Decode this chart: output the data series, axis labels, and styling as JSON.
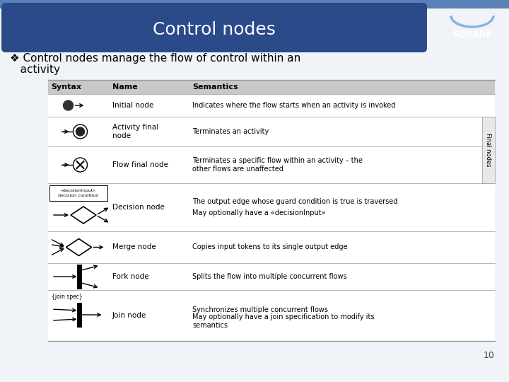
{
  "title": "Control nodes",
  "square_text": "SQUARE",
  "bullet_line1": "❖ Control nodes manage the flow of control within an",
  "bullet_line2": "   activity",
  "header_bg": "#2a4a8a",
  "slide_bg": "#dce6f1",
  "top_band_color": "#5b80b8",
  "table_header_labels": [
    "Syntax",
    "Name",
    "Semantics"
  ],
  "rows": [
    {
      "name": "Initial node",
      "semantics": "Indicates where the flow starts when an activity is invoked",
      "semantics2": ""
    },
    {
      "name": "Activity final\nnode",
      "semantics": "Terminates an activity",
      "semantics2": ""
    },
    {
      "name": "Flow final node",
      "semantics": "Terminates a specific flow within an activity – the\nother flows are unaffected",
      "semantics2": ""
    },
    {
      "name": "Decision node",
      "semantics": "The output edge whose guard condition is true is traversed",
      "semantics2": "May optionally have a «decisionInput»"
    },
    {
      "name": "Merge node",
      "semantics": "Copies input tokens to its single output edge",
      "semantics2": ""
    },
    {
      "name": "Fork node",
      "semantics": "Splits the flow into multiple concurrent flows",
      "semantics2": ""
    },
    {
      "name": "Join node",
      "semantics": "Synchronizes multiple concurrent flows",
      "semantics2": "May optionally have a join specification to modify its\nsemantics"
    }
  ],
  "final_nodes_label": "Final nodes",
  "page_number": "10",
  "title_text_color": "#ffffff",
  "table_header_bg": "#c8c8c8",
  "table_line_color": "#999999",
  "body_bg": "#ffffff"
}
